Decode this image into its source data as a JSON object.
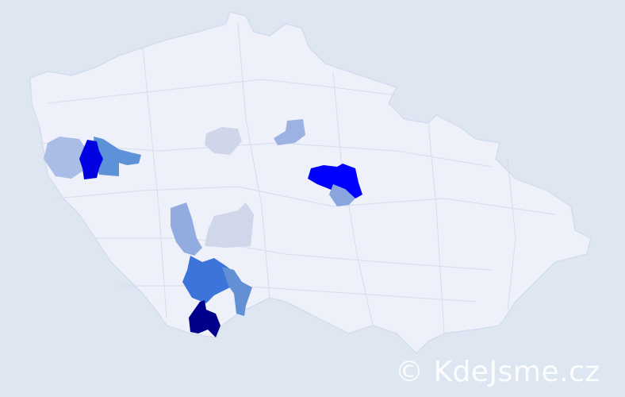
{
  "map": {
    "background_color": "#dde6f1",
    "country_fill": "#eef1f9",
    "border_color": "#d4dcef",
    "highlighted_regions": [
      {
        "color": "#a9bde6"
      },
      {
        "color": "#0000e0"
      },
      {
        "color": "#5e92d8"
      },
      {
        "color": "#cfd6ea"
      },
      {
        "color": "#9bb2e2"
      },
      {
        "color": "#0000ff"
      },
      {
        "color": "#8aa5dd"
      },
      {
        "color": "#93ace0"
      },
      {
        "color": "#d0d7ea"
      },
      {
        "color": "#3d74d9"
      },
      {
        "color": "#6390d4"
      },
      {
        "color": "#00008b"
      }
    ]
  },
  "watermark": {
    "text": "© KdeJsme.cz"
  }
}
